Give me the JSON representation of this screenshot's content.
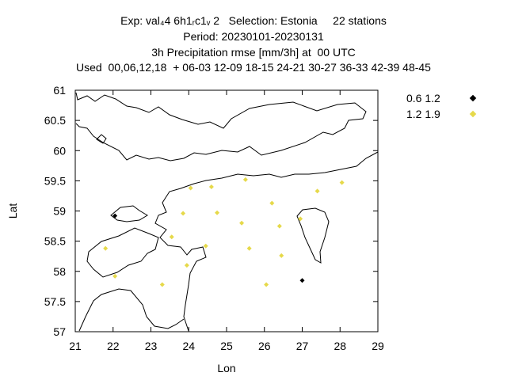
{
  "chart_data": {
    "type": "scatter",
    "title_lines": [
      "Exp: val₄4 6h1ᵣc1ᵥ 2   Selection: Estonia     22 stations",
      "Period: 20230101-20230131",
      "3h Precipitation rmse [mm/3h] at  00 UTC",
      "Used  00,06,12,18  + 06-03 12-09 18-15 24-21 30-27 36-33 42-39 48-45"
    ],
    "xlabel": "Lon",
    "ylabel": "Lat",
    "xlim": [
      21,
      29
    ],
    "ylim": [
      57,
      61
    ],
    "xticks": [
      "21",
      "22",
      "23",
      "24",
      "25",
      "26",
      "27",
      "28",
      "29"
    ],
    "yticks": [
      "57",
      "57.5",
      "58",
      "58.5",
      "59",
      "59.5",
      "60",
      "60.5",
      "61"
    ],
    "legend_position": "right",
    "series": [
      {
        "name": "0.6 1.2",
        "color": "#000000",
        "points": [
          [
            22.05,
            58.92
          ],
          [
            27.0,
            57.85
          ]
        ]
      },
      {
        "name": "1.2 1.9",
        "color": "#e6d94a",
        "points": [
          [
            24.05,
            59.38
          ],
          [
            24.6,
            59.4
          ],
          [
            25.5,
            59.52
          ],
          [
            28.05,
            59.47
          ],
          [
            27.4,
            59.33
          ],
          [
            26.2,
            59.13
          ],
          [
            23.85,
            58.96
          ],
          [
            24.75,
            58.97
          ],
          [
            26.95,
            58.87
          ],
          [
            25.4,
            58.8
          ],
          [
            26.4,
            58.75
          ],
          [
            23.55,
            58.57
          ],
          [
            24.45,
            58.42
          ],
          [
            25.6,
            58.38
          ],
          [
            21.8,
            58.38
          ],
          [
            26.45,
            58.26
          ],
          [
            23.95,
            58.1
          ],
          [
            22.05,
            57.92
          ],
          [
            23.3,
            57.78
          ],
          [
            26.05,
            57.78
          ]
        ]
      }
    ]
  }
}
